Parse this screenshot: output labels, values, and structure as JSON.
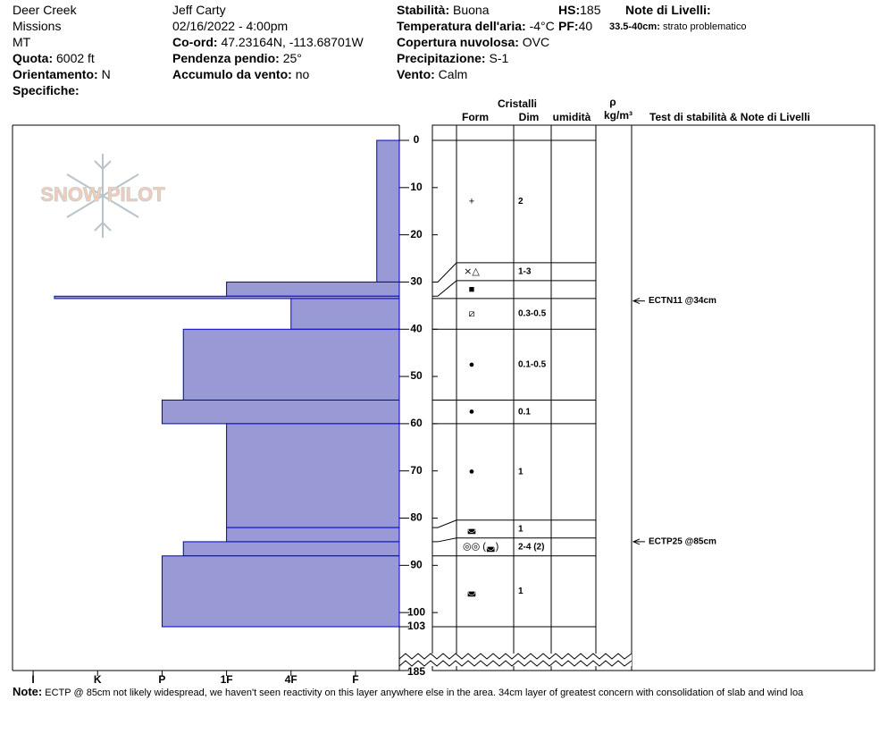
{
  "header": {
    "site": "Deer Creek",
    "range": "Missions",
    "state": "MT",
    "observer": "Jeff Carty",
    "datetime": "02/16/2022 - 4:00pm",
    "fields": [
      {
        "label": "Quota:",
        "value": "6002 ft"
      },
      {
        "label": "Orientamento:",
        "value": "N"
      },
      {
        "label": "Specifiche:"
      },
      {
        "label": "Co-ord:",
        "value": "47.23164N, -113.68701W"
      },
      {
        "label": "Pendenza pendio:",
        "value": "25°"
      },
      {
        "label": "Accumulo da vento:",
        "value": "no"
      },
      {
        "label": "Stabilità:",
        "value": "Buona"
      },
      {
        "label": "Temperatura dell'aria:",
        "value": "-4°C"
      },
      {
        "label": "Copertura nuvolosa:",
        "value": "OVC"
      },
      {
        "label": "Precipitazione:",
        "value": "S-1"
      },
      {
        "label": "Vento:",
        "value": "Calm"
      },
      {
        "label": "HS:",
        "value": "185"
      },
      {
        "label": "PF:",
        "value": "40"
      },
      {
        "label": "Note di Livelli:"
      }
    ],
    "layer_note": {
      "label": "33.5-40cm:",
      "value": "strato problematico"
    }
  },
  "logo": "SNOW PILOT",
  "note": {
    "label": "Note:",
    "text": "ECTP @ 85cm not likely widespread, we haven't seen reactivity on this layer anywhere else in the area. 34cm layer of greatest concern with consolidation of slab and wind loa"
  },
  "chart_data": {
    "type": "snow-profile",
    "xlim": [
      6.32,
      0.32
    ],
    "xticks": [
      {
        "value": 6,
        "label": "I"
      },
      {
        "value": 5,
        "label": "K"
      },
      {
        "value": 4,
        "label": "P"
      },
      {
        "value": 3,
        "label": "1F"
      },
      {
        "value": 2,
        "label": "4F"
      },
      {
        "value": 1,
        "label": "F"
      }
    ],
    "ylim": [
      0,
      185
    ],
    "yticks": [
      0,
      10,
      20,
      30,
      40,
      50,
      60,
      70,
      80,
      90,
      100,
      103,
      185
    ],
    "axis_break": true,
    "color": "#9999d6",
    "edge_color": "#0000cc",
    "layers": {
      "top": [
        0,
        30,
        33,
        33.5,
        40,
        55,
        60,
        82,
        85,
        88
      ],
      "bottom": [
        30,
        33,
        33.5,
        40,
        55,
        60,
        82,
        85,
        88,
        103
      ],
      "hardness": [
        0.67,
        3,
        5.67,
        2,
        3.67,
        4,
        3,
        3,
        3.67,
        4
      ],
      "form": [
        "+",
        "⨯△",
        "■",
        "⧄",
        "●",
        "●",
        "●",
        "◛",
        "◎◎ (◛)",
        "◛"
      ],
      "size": [
        "2",
        "1-3",
        null,
        "0.3-0.5",
        "0.1-0.5",
        "0.1",
        "1",
        "1",
        "2-4 (2)",
        "1"
      ]
    },
    "columns": {
      "crystals": "Cristalli",
      "form": "Form",
      "size": "Dim",
      "wetness": "umidità",
      "density": "ρ",
      "density_unit": "kg/m³",
      "tests": "Test di stabilità & Note di Livelli"
    },
    "tests": [
      {
        "label": "ECTN11 @34cm",
        "depth": 34
      },
      {
        "label": "ECTP25 @85cm",
        "depth": 85
      }
    ]
  }
}
